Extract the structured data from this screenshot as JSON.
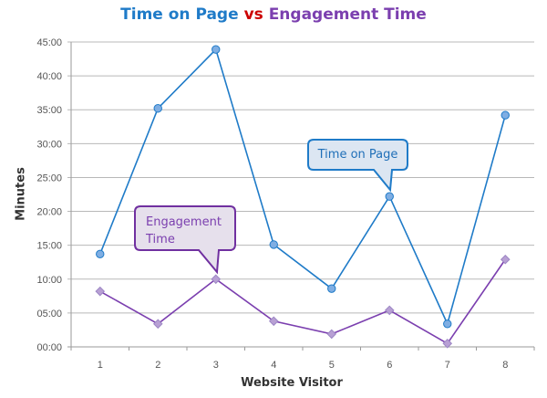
{
  "title": {
    "part1": "Time on Page",
    "part2": "vs",
    "part3": "Engagement Time"
  },
  "axes": {
    "ylabel": "Minutes",
    "xlabel": "Website Visitor"
  },
  "callouts": {
    "time_on_page": "Time on Page",
    "engagement_line1": "Engagement",
    "engagement_line2": "Time"
  },
  "colors": {
    "time_on_page": "#1F7BC8",
    "engagement": "#7B3FAF",
    "vs": "#CC0000"
  },
  "chart_data": {
    "type": "line",
    "title": "Time on Page vs Engagement Time",
    "xlabel": "Website Visitor",
    "ylabel": "Minutes",
    "categories": [
      "1",
      "2",
      "3",
      "4",
      "5",
      "6",
      "7",
      "8"
    ],
    "y_ticks": [
      "00:00",
      "05:00",
      "10:00",
      "15:00",
      "20:00",
      "25:00",
      "30:00",
      "35:00",
      "40:00",
      "45:00"
    ],
    "ylim": [
      0,
      45
    ],
    "grid": true,
    "legend": "none (callout annotations used)",
    "series": [
      {
        "name": "Time on Page",
        "values": [
          13.7,
          35.2,
          43.9,
          15.1,
          8.6,
          22.2,
          3.4,
          34.2
        ],
        "marker": "circle"
      },
      {
        "name": "Engagement Time",
        "values": [
          8.2,
          3.4,
          10.0,
          3.8,
          1.9,
          5.4,
          0.5,
          12.9
        ],
        "marker": "diamond"
      }
    ],
    "annotations": [
      {
        "text": "Time on Page",
        "points_to": {
          "series": "Time on Page",
          "x": "6"
        }
      },
      {
        "text": "Engagement Time",
        "points_to": {
          "series": "Engagement Time",
          "x": "3"
        }
      }
    ]
  }
}
